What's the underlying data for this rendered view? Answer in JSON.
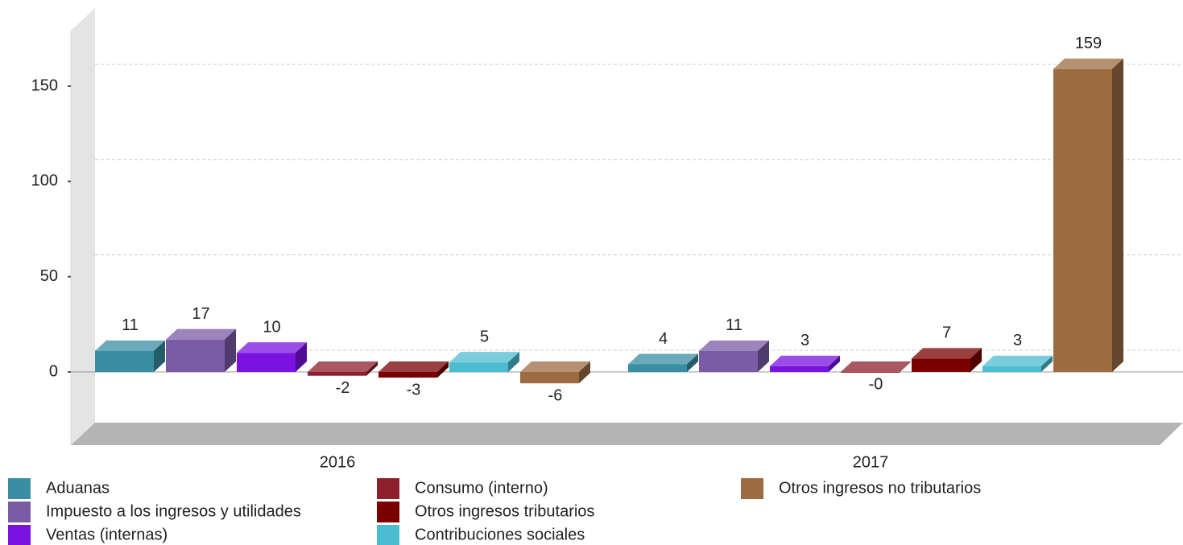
{
  "chart_data": {
    "type": "bar3d",
    "categories": [
      "2016",
      "2017"
    ],
    "series": [
      {
        "name": "Aduanas",
        "color": "#3a8ea3",
        "values": [
          11,
          4
        ]
      },
      {
        "name": "Impuesto a los ingresos y utilidades",
        "color": "#7a5ca6",
        "values": [
          17,
          11
        ]
      },
      {
        "name": "Ventas (internas)",
        "color": "#7a12e0",
        "values": [
          10,
          3
        ]
      },
      {
        "name": "Consumo (interno)",
        "color": "#8e1f2c",
        "values": [
          -2,
          -0.2
        ],
        "value_labels": [
          "-2",
          "-0"
        ]
      },
      {
        "name": "Otros ingresos tributarios",
        "color": "#7a0000",
        "values": [
          -3,
          7
        ]
      },
      {
        "name": "Contribuciones sociales",
        "color": "#4cbdd1",
        "values": [
          5,
          3
        ]
      },
      {
        "name": "Otros ingresos no tributarios",
        "color": "#9c6b42",
        "values": [
          -6,
          159
        ]
      }
    ],
    "ylim": [
      -26,
      191
    ],
    "yticks": [
      0,
      50,
      100,
      150
    ],
    "grid": true
  }
}
